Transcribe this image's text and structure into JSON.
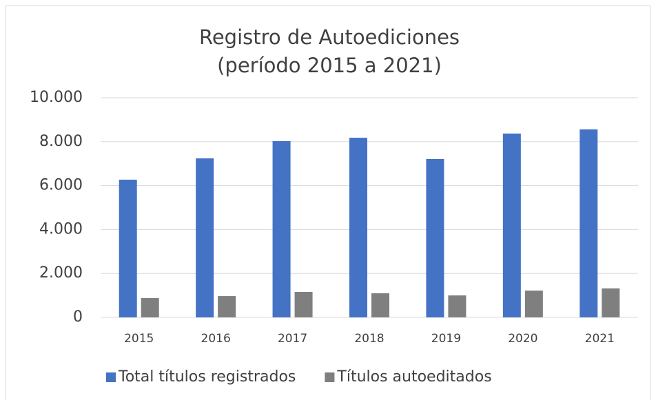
{
  "chart_data": {
    "type": "bar",
    "title": [
      "Registro de Autoediciones",
      "(período 2015 a 2021)"
    ],
    "categories": [
      "2015",
      "2016",
      "2017",
      "2018",
      "2019",
      "2020",
      "2021"
    ],
    "series": [
      {
        "name": "Total títulos registrados",
        "color": "#4472c4",
        "values": [
          6270,
          7240,
          8025,
          8180,
          7210,
          8370,
          8560
        ]
      },
      {
        "name": "Títulos autoeditados",
        "color": "#7f7f7f",
        "values": [
          878,
          970,
          1160,
          1100,
          1000,
          1220,
          1320
        ]
      }
    ],
    "ylim": [
      0,
      10000
    ],
    "yticks": [
      0,
      {
        "value": 2000,
        "label": "2.000"
      },
      {
        "value": 4000,
        "label": "4.000"
      },
      {
        "value": 6000,
        "label": "6.000"
      },
      {
        "value": 8000,
        "label": "8.000"
      },
      {
        "value": 10000,
        "label": "10.000"
      }
    ],
    "grid": true,
    "legend": "bottom"
  }
}
